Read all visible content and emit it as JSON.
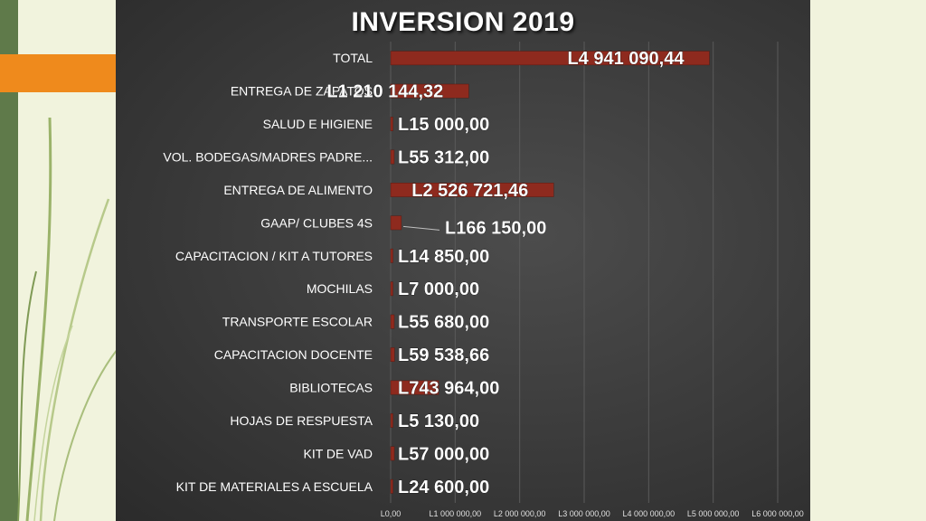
{
  "colors": {
    "bar": "#8e2a1e",
    "slide_background": "#3a3a3a",
    "page_background": "#f1f3dd",
    "accent_orange": "#ef8a1c",
    "accent_green": "#5f7a4a"
  },
  "chart_data": {
    "type": "bar",
    "orientation": "horizontal",
    "title": "INVERSION 2019",
    "xlabel": "",
    "ylabel": "",
    "grid": true,
    "xlim": [
      0,
      6000000
    ],
    "xticks": [
      0,
      1000000,
      2000000,
      3000000,
      4000000,
      5000000,
      6000000
    ],
    "tick_labels": [
      "L0,00",
      "L1 000 000,00",
      "L2 000 000,00",
      "L3 000 000,00",
      "L4 000 000,00",
      "L5 000 000,00",
      "L6 000 000,00"
    ],
    "categories": [
      "TOTAL",
      "ENTREGA DE ZAPATOS",
      "SALUD E HIGIENE",
      "VOL. BODEGAS/MADRES PADRE...",
      "ENTREGA DE ALIMENTO",
      "GAAP/ CLUBES 4S",
      "CAPACITACION / KIT A TUTORES",
      "MOCHILAS",
      "TRANSPORTE ESCOLAR",
      "CAPACITACION DOCENTE",
      "BIBLIOTECAS",
      "HOJAS DE RESPUESTA",
      "KIT DE VAD",
      "KIT DE MATERIALES A ESCUELA"
    ],
    "values": [
      4941090.44,
      1210144.32,
      15000.0,
      55312.0,
      2526721.46,
      166150.0,
      14850.0,
      7000.0,
      55680.0,
      59538.66,
      743964.0,
      5130.0,
      57000.0,
      24600.0
    ],
    "value_labels": [
      "L4 941 090,44",
      "L1 210 144,32",
      "L15 000,00",
      "L55 312,00",
      "L2 526 721,46",
      "L166 150,00",
      "L14 850,00",
      "L7 000,00",
      "L55 680,00",
      "L59 538,66",
      "L743 964,00",
      "L5 130,00",
      "L57 000,00",
      "L24 600,00"
    ]
  }
}
